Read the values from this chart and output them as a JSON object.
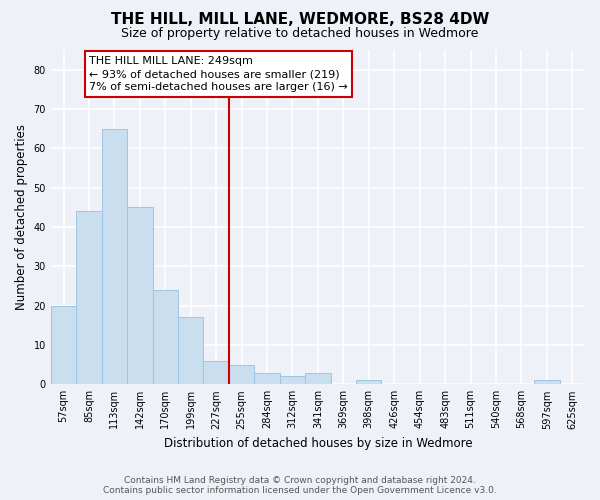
{
  "title": "THE HILL, MILL LANE, WEDMORE, BS28 4DW",
  "subtitle": "Size of property relative to detached houses in Wedmore",
  "xlabel": "Distribution of detached houses by size in Wedmore",
  "ylabel": "Number of detached properties",
  "bin_labels": [
    "57sqm",
    "85sqm",
    "113sqm",
    "142sqm",
    "170sqm",
    "199sqm",
    "227sqm",
    "255sqm",
    "284sqm",
    "312sqm",
    "341sqm",
    "369sqm",
    "398sqm",
    "426sqm",
    "454sqm",
    "483sqm",
    "511sqm",
    "540sqm",
    "568sqm",
    "597sqm",
    "625sqm"
  ],
  "bar_heights": [
    20,
    44,
    65,
    45,
    24,
    17,
    6,
    5,
    3,
    2,
    3,
    0,
    1,
    0,
    0,
    0,
    0,
    0,
    0,
    1,
    0
  ],
  "bar_color": "#c9dff0",
  "bar_edge_color": "#a0c4e0",
  "vline_x_idx": 6.5,
  "vline_color": "#cc0000",
  "annotation_title": "THE HILL MILL LANE: 249sqm",
  "annotation_line1": "← 93% of detached houses are smaller (219)",
  "annotation_line2": "7% of semi-detached houses are larger (16) →",
  "annotation_box_color": "#ffffff",
  "annotation_box_edge": "#cc0000",
  "ylim": [
    0,
    85
  ],
  "yticks": [
    0,
    10,
    20,
    30,
    40,
    50,
    60,
    70,
    80
  ],
  "footer_line1": "Contains HM Land Registry data © Crown copyright and database right 2024.",
  "footer_line2": "Contains public sector information licensed under the Open Government Licence v3.0.",
  "background_color": "#eef2f8",
  "grid_color": "#ffffff",
  "title_fontsize": 11,
  "subtitle_fontsize": 9,
  "axis_label_fontsize": 8.5,
  "tick_fontsize": 7,
  "annotation_fontsize": 8,
  "footer_fontsize": 6.5
}
